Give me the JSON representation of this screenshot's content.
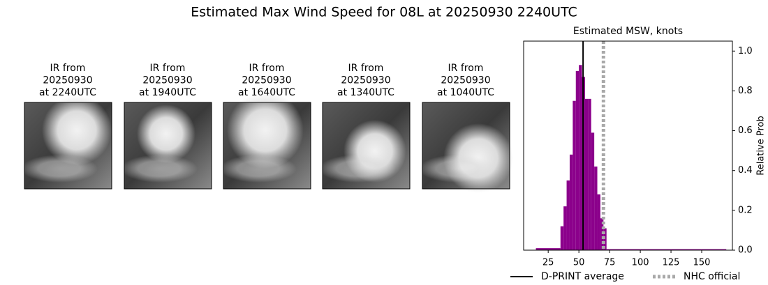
{
  "title": "Estimated Max Wind Speed for 08L at 20250930 2240UTC",
  "panels": [
    {
      "label": [
        "IR from",
        "20250930",
        "at 2240UTC"
      ]
    },
    {
      "label": [
        "IR from",
        "20250930",
        "at 1940UTC"
      ]
    },
    {
      "label": [
        "IR from",
        "20250930",
        "at 1640UTC"
      ]
    },
    {
      "label": [
        "IR from",
        "20250930",
        "at 1340UTC"
      ]
    },
    {
      "label": [
        "IR from",
        "20250930",
        "at 1040UTC"
      ]
    }
  ],
  "chart_data": {
    "type": "histogram",
    "title": "Estimated MSW, knots",
    "ylabel": "Relative Prob",
    "bins": [
      15,
      35,
      37.5,
      40,
      42.5,
      45,
      47.5,
      50,
      52.5,
      55,
      57.5,
      60,
      62.5,
      65,
      67.5,
      70,
      72.5,
      170
    ],
    "values": [
      0.01,
      0.12,
      0.22,
      0.35,
      0.48,
      0.75,
      0.9,
      0.93,
      0.87,
      0.76,
      0.76,
      0.59,
      0.42,
      0.28,
      0.16,
      0.11,
      0.005
    ],
    "color": "#8b008b",
    "xlim": [
      5,
      175
    ],
    "xticks": [
      25,
      50,
      75,
      100,
      125,
      150
    ],
    "ylim": [
      0,
      1.05
    ],
    "yticks": [
      {
        "value": 0,
        "label": "0.0"
      },
      0.2,
      0.4,
      0.6,
      0.8,
      {
        "value": 1,
        "label": "1.0"
      }
    ],
    "y_axis_side": "right",
    "lines": [
      {
        "name": "D-PRINT average",
        "value": 53.4,
        "color": "#000000",
        "style": "solid"
      },
      {
        "name": "NHC official",
        "value": 70,
        "color": "#a9a9a9",
        "style": "dotted"
      }
    ],
    "legend": "lower center"
  }
}
